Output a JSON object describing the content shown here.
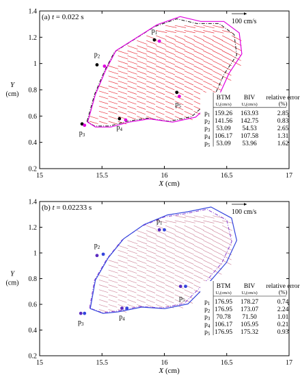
{
  "chart_data": [
    {
      "type": "vector-field",
      "label_prefix": "(a)",
      "time_var": "t",
      "time_value": "= 0.022 s",
      "xlabel": "X",
      "xunit": "(cm)",
      "ylabel": "Y",
      "yunit": "(cm)",
      "xlim": [
        15,
        17
      ],
      "ylim": [
        0.2,
        1.4
      ],
      "xticks": [
        "15",
        "15.5",
        "16",
        "16.5",
        "17"
      ],
      "yticks": [
        "0.2",
        "0.4",
        "0.6",
        "0.8",
        "1",
        "1.2",
        "1.4"
      ],
      "reference_vector": "100 cm/s",
      "vector_color": "#e8323e",
      "btm_contour_color": "#111111",
      "biv_contour_color": "#e000e0",
      "points": [
        {
          "name": "p",
          "sub": "1",
          "btm": [
            15.92,
            1.18
          ],
          "biv": [
            15.96,
            1.17
          ]
        },
        {
          "name": "p",
          "sub": "2",
          "btm": [
            15.46,
            0.99
          ],
          "biv": [
            15.52,
            0.98
          ]
        },
        {
          "name": "p",
          "sub": "3",
          "btm": [
            15.34,
            0.54
          ],
          "biv": [
            15.36,
            0.53
          ]
        },
        {
          "name": "p",
          "sub": "4",
          "btm": [
            15.64,
            0.58
          ],
          "biv": [
            15.69,
            0.57
          ]
        },
        {
          "name": "p",
          "sub": "5",
          "btm": [
            16.1,
            0.78
          ],
          "biv": [
            16.12,
            0.75
          ]
        }
      ],
      "table": {
        "headers": [
          "",
          "BTM",
          "BIV",
          "relative error"
        ],
        "subheaders": [
          "",
          "Uₓ(cm/s)",
          "Uₓ(cm/s)",
          "(%)"
        ],
        "rows": [
          [
            "p1",
            "159.26",
            "163.93",
            "2.85"
          ],
          [
            "p2",
            "141.56",
            "142.75",
            "0.83"
          ],
          [
            "p3",
            "53.09",
            "54.53",
            "2.65"
          ],
          [
            "p4",
            "106.17",
            "107.58",
            "1.31"
          ],
          [
            "p5",
            "53.09",
            "53.96",
            "1.62"
          ]
        ]
      }
    },
    {
      "type": "vector-field",
      "label_prefix": "(b)",
      "time_var": "t",
      "time_value": "= 0.02233 s",
      "xlabel": "X",
      "xunit": "(cm)",
      "ylabel": "Y",
      "yunit": "(cm)",
      "xlim": [
        15,
        17
      ],
      "ylim": [
        0.2,
        1.4
      ],
      "xticks": [
        "15",
        "15.5",
        "16",
        "16.5",
        "17"
      ],
      "yticks": [
        "0.2",
        "0.4",
        "0.6",
        "0.8",
        "1",
        "1.2",
        "1.4"
      ],
      "reference_vector": "100 cm/s",
      "vector_color": "#c87890",
      "btm_contour_color": "#8a3fd0",
      "biv_contour_color": "#3344dd",
      "points": [
        {
          "name": "p",
          "sub": "1",
          "btm": [
            15.96,
            1.18
          ],
          "biv": [
            16.0,
            1.18
          ]
        },
        {
          "name": "p",
          "sub": "2",
          "btm": [
            15.46,
            0.98
          ],
          "biv": [
            15.51,
            0.99
          ]
        },
        {
          "name": "p",
          "sub": "3",
          "btm": [
            15.33,
            0.53
          ],
          "biv": [
            15.36,
            0.53
          ]
        },
        {
          "name": "p",
          "sub": "4",
          "btm": [
            15.66,
            0.57
          ],
          "biv": [
            15.7,
            0.57
          ]
        },
        {
          "name": "p",
          "sub": "5",
          "btm": [
            16.13,
            0.74
          ],
          "biv": [
            16.17,
            0.74
          ]
        }
      ],
      "table": {
        "headers": [
          "",
          "BTM",
          "BIV",
          "relative error"
        ],
        "subheaders": [
          "",
          "Uₓ(cm/s)",
          "Uₓ(cm/s)",
          "(%)"
        ],
        "rows": [
          [
            "p1",
            "176.95",
            "178.27",
            "0.74"
          ],
          [
            "p2",
            "176.95",
            "173.07",
            "2.24"
          ],
          [
            "p3",
            "70.78",
            "71.50",
            "1.01"
          ],
          [
            "p4",
            "106.17",
            "105.95",
            "0.21"
          ],
          [
            "p5",
            "176.95",
            "175.32",
            "0.93"
          ]
        ]
      }
    }
  ]
}
